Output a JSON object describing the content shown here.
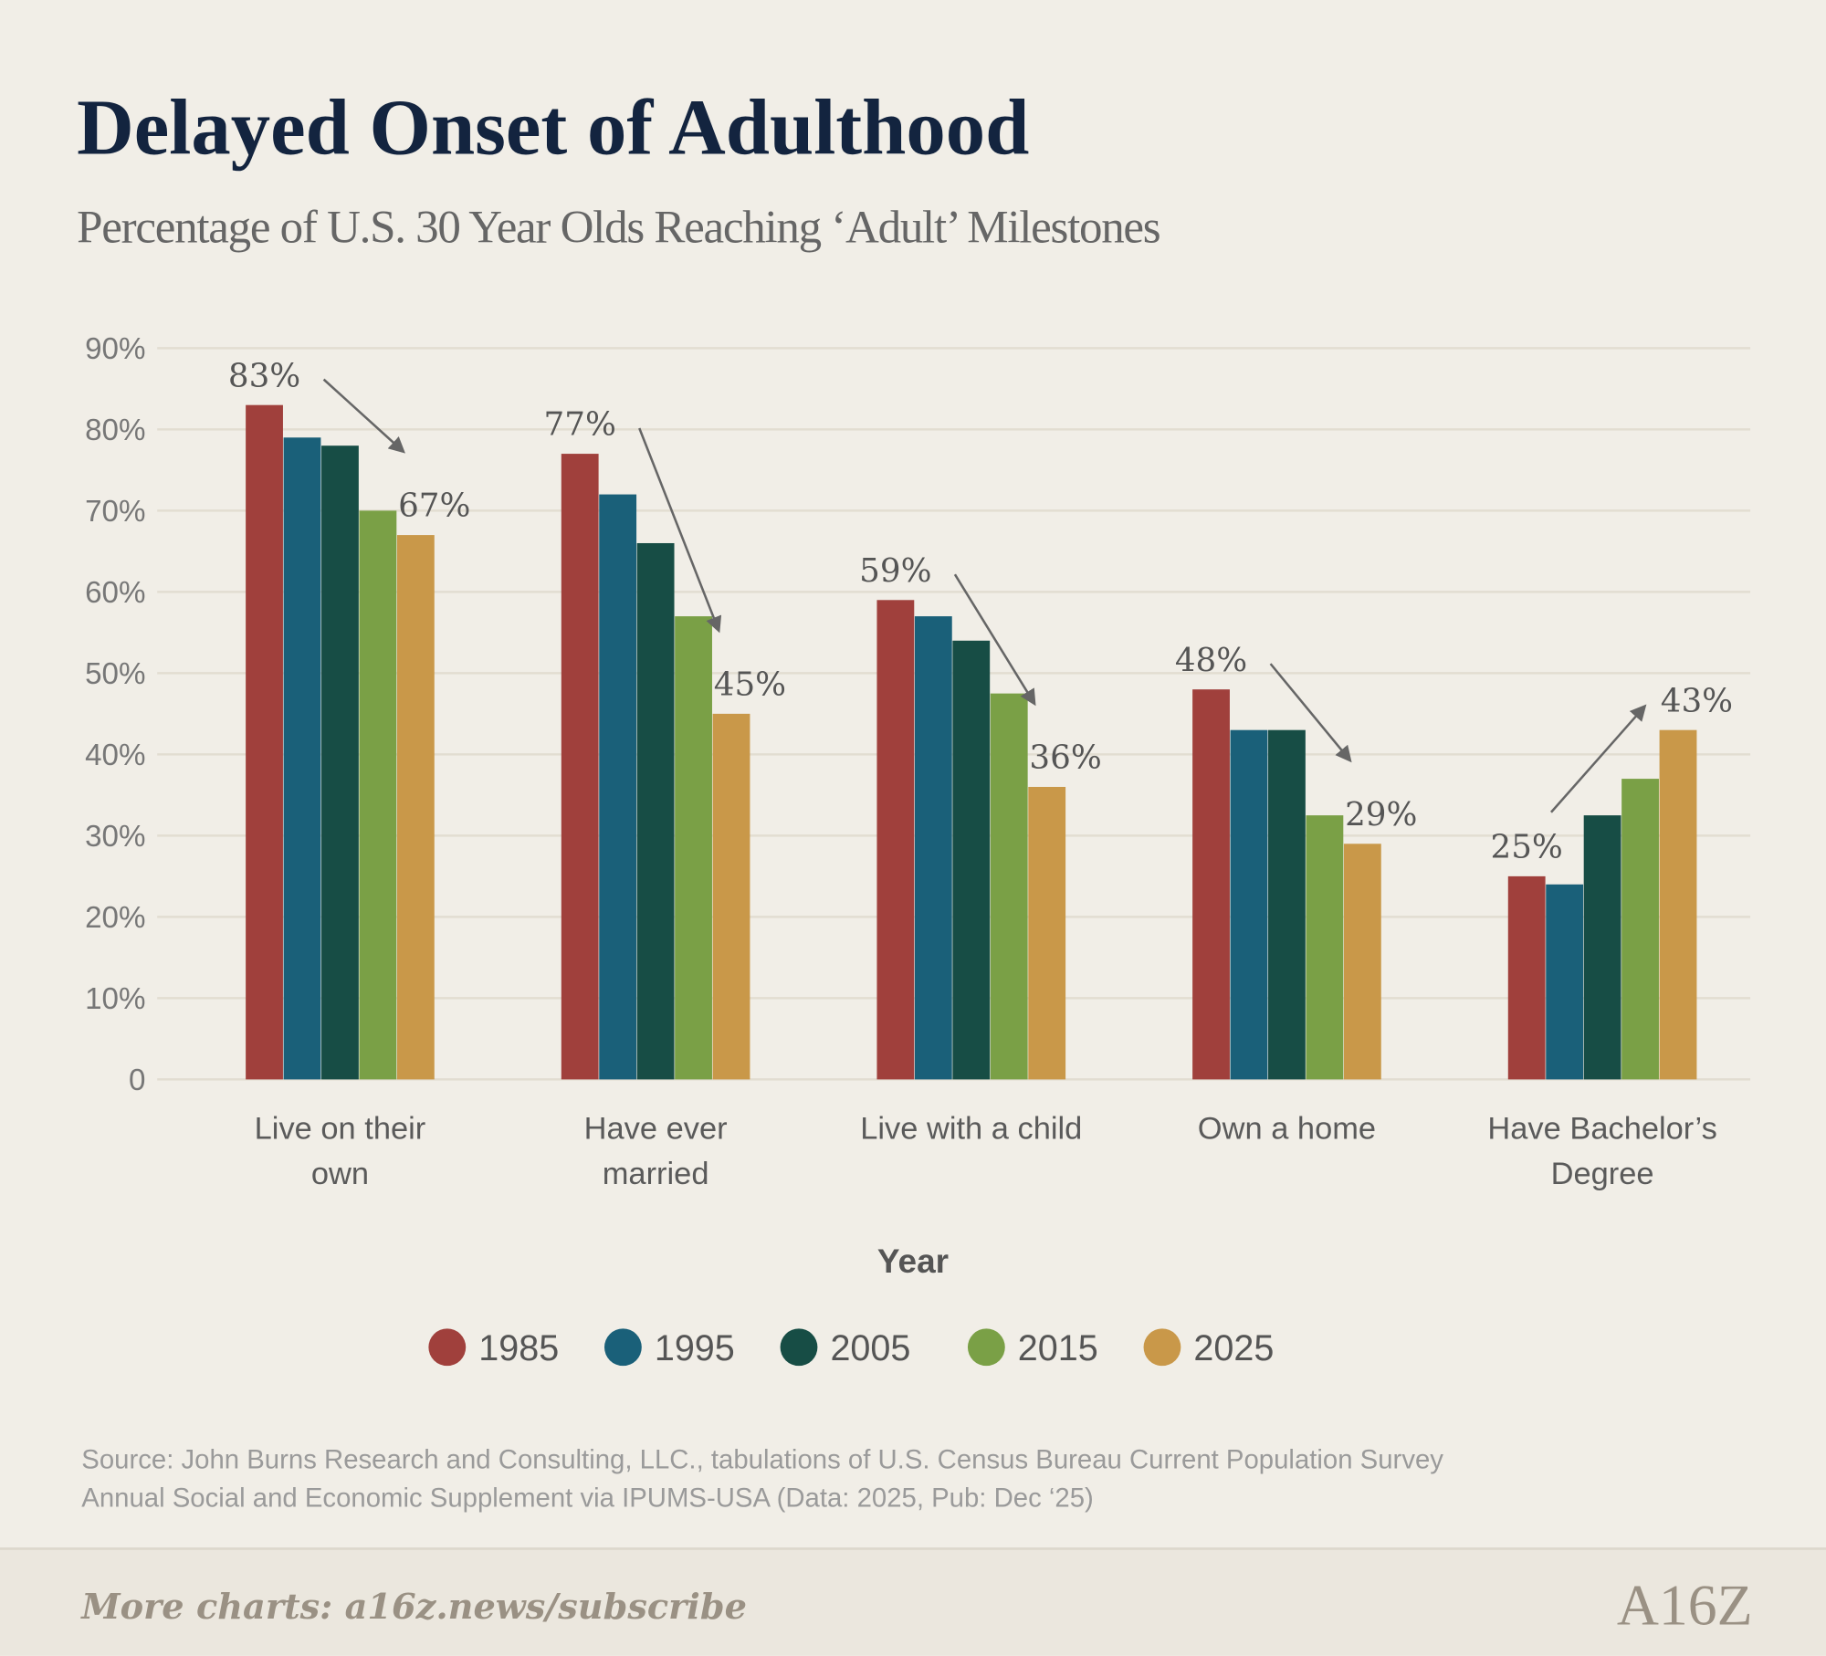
{
  "chart_data": {
    "type": "bar",
    "title": "Delayed Onset of Adulthood",
    "subtitle": "Percentage of U.S. 30 Year Olds Reaching ‘Adult’ Milestones",
    "categories": [
      "Live on their own",
      "Have ever married",
      "Live with a child",
      "Own a home",
      "Have Bachelor’s Degree"
    ],
    "legend_title": "Year",
    "series": [
      {
        "name": "1985",
        "color": "#a0403c",
        "values": [
          83,
          77,
          59,
          48,
          25
        ],
        "value_labels": [
          "83%",
          "77%",
          "59%",
          "48%",
          "25%"
        ]
      },
      {
        "name": "1995",
        "color": "#1a6079",
        "values": [
          79,
          72,
          57,
          43,
          24
        ]
      },
      {
        "name": "2005",
        "color": "#174d45",
        "values": [
          78,
          66,
          54,
          43,
          32.5
        ]
      },
      {
        "name": "2015",
        "color": "#7aa046",
        "values": [
          70,
          57,
          47.5,
          32.5,
          37
        ]
      },
      {
        "name": "2025",
        "color": "#c99849",
        "values": [
          67,
          45,
          36,
          29,
          43
        ],
        "value_labels": [
          "67%",
          "45%",
          "36%",
          "29%",
          "43%"
        ]
      }
    ],
    "ylim": [
      0,
      90
    ],
    "yticks": [
      0,
      {
        "value": 10,
        "label": "10%"
      },
      {
        "value": 20,
        "label": "20%"
      },
      {
        "value": 30,
        "label": "30%"
      },
      {
        "value": 40,
        "label": "40%"
      },
      {
        "value": 50,
        "label": "50%"
      },
      {
        "value": 60,
        "label": "60%"
      },
      {
        "value": 70,
        "label": "70%"
      },
      {
        "value": 80,
        "label": "80%"
      },
      {
        "value": 90,
        "label": "90%"
      }
    ],
    "grid": true,
    "source": [
      "Source: John Burns Research and Consulting, LLC., tabulations of U.S. Census Bureau Current Population Survey",
      "Annual Social and Economic Supplement via IPUMS-USA (Data: 2025, Pub: Dec ‘25)"
    ],
    "footer": "More charts: a16z.news/subscribe",
    "logo": "A16Z"
  }
}
